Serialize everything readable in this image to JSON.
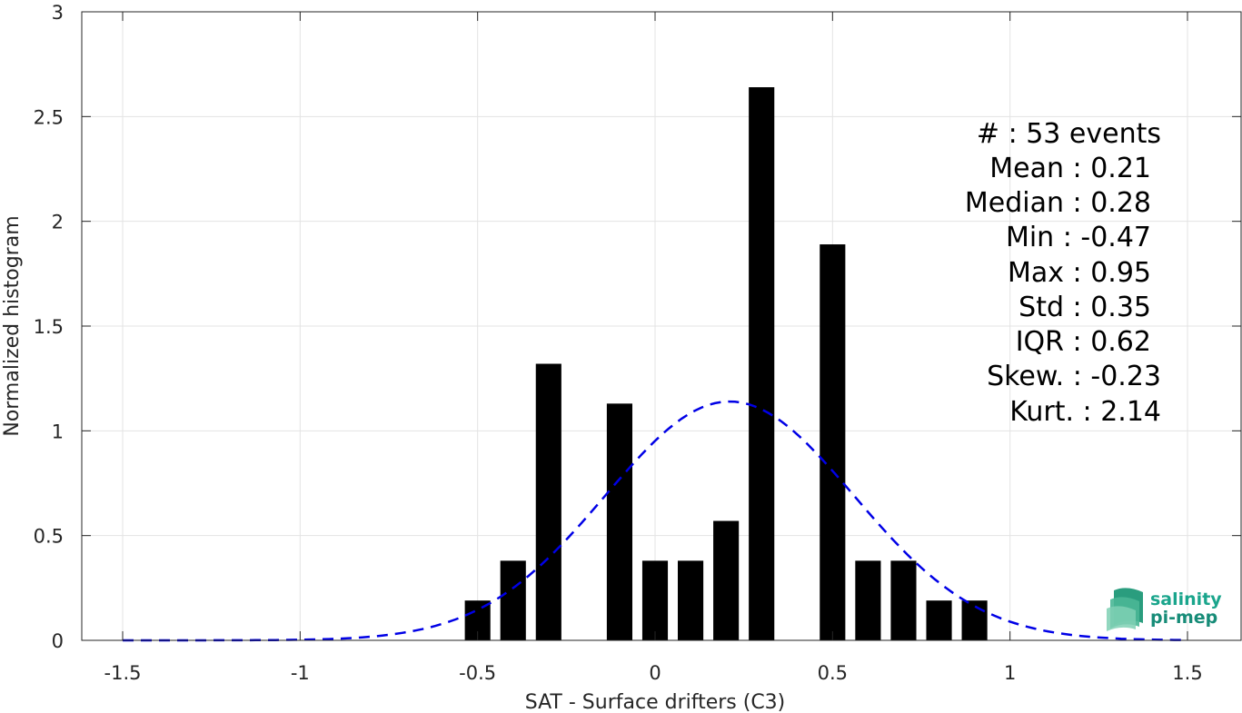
{
  "chart_data": {
    "type": "bar",
    "xlabel": "SAT - Surface drifters (C3)",
    "ylabel": "Normalized histogram",
    "xlim": [
      -1.5,
      1.5
    ],
    "ylim": [
      0,
      3
    ],
    "grid": true,
    "xticks": [
      "-1.5",
      "-1",
      "-0.5",
      "0",
      "0.5",
      "1",
      "1.5"
    ],
    "xtick_values": [
      -1.5,
      -1,
      -0.5,
      0,
      0.5,
      1,
      1.5
    ],
    "yticks": [
      "0",
      "0.5",
      "1",
      "1.5",
      "2",
      "2.5",
      "3"
    ],
    "ytick_values": [
      0,
      0.5,
      1,
      1.5,
      2,
      2.5,
      3
    ],
    "bin_width": 0.1,
    "bar_color": "#000000",
    "bars": [
      {
        "x": -0.5,
        "value": 0.19
      },
      {
        "x": -0.4,
        "value": 0.38
      },
      {
        "x": -0.3,
        "value": 1.32
      },
      {
        "x": -0.1,
        "value": 1.13
      },
      {
        "x": 0.0,
        "value": 0.38
      },
      {
        "x": 0.1,
        "value": 0.38
      },
      {
        "x": 0.2,
        "value": 0.57
      },
      {
        "x": 0.3,
        "value": 2.64
      },
      {
        "x": 0.5,
        "value": 1.89
      },
      {
        "x": 0.6,
        "value": 0.38
      },
      {
        "x": 0.7,
        "value": 0.38
      },
      {
        "x": 0.8,
        "value": 0.19
      },
      {
        "x": 0.9,
        "value": 0.19
      }
    ],
    "fit_curve": {
      "style": "dashed",
      "color": "#0000e6",
      "mean": 0.21,
      "std": 0.35,
      "x_range": [
        -1.5,
        1.5
      ]
    }
  },
  "stats": [
    "#  : 53 events",
    "Mean : 0.21",
    "Median : 0.28",
    "Min : -0.47",
    "Max : 0.95",
    "Std : 0.35",
    "IQR : 0.62",
    "Skew. : -0.23",
    "Kurt. : 2.14"
  ],
  "logo": {
    "line1": "salinity",
    "line2": "pi-mep",
    "color": "#1aa58c"
  }
}
